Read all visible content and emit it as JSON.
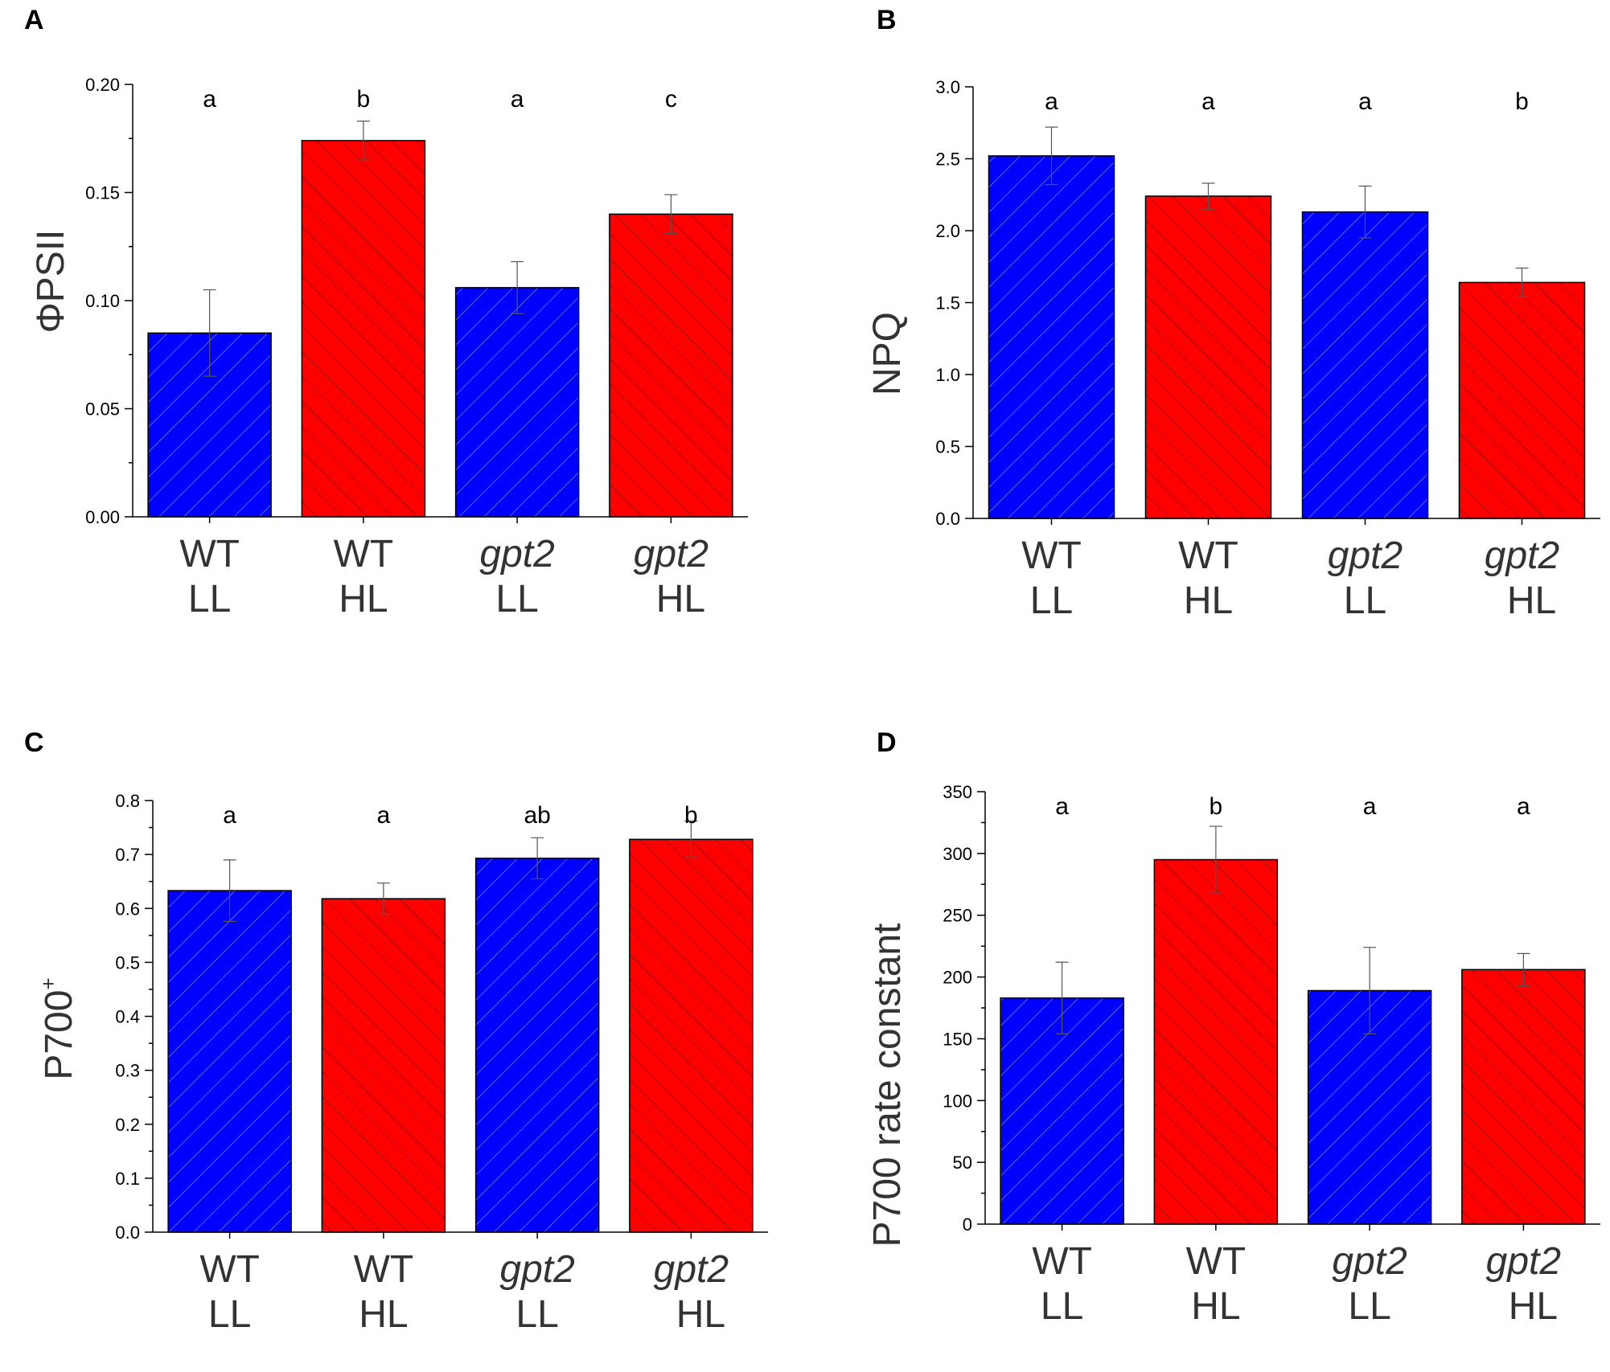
{
  "colors": {
    "LL": "#0000ff",
    "HL": "#ff0000"
  },
  "chart_data": [
    {
      "panel": "A",
      "type": "bar",
      "ylabel": "ΦPSII",
      "ylim": [
        0,
        0.2
      ],
      "yticks": [
        "0.00",
        "0.05",
        "0.10",
        "0.15",
        "0.20"
      ],
      "categories": [
        {
          "line1": "WT",
          "line2": "LL",
          "italic": false,
          "light": "LL"
        },
        {
          "line1": "WT",
          "line2": "HL",
          "italic": false,
          "light": "HL"
        },
        {
          "line1": "gpt2",
          "line2": "LL",
          "italic": true,
          "light": "LL"
        },
        {
          "line1": "gpt2",
          "line2": "HL",
          "italic": true,
          "light": "HL"
        }
      ],
      "values": [
        0.085,
        0.174,
        0.106,
        0.14
      ],
      "errors": [
        0.02,
        0.009,
        0.012,
        0.009
      ],
      "significance": [
        "a",
        "b",
        "a",
        "c"
      ]
    },
    {
      "panel": "B",
      "type": "bar",
      "ylabel": "NPQ",
      "ylim": [
        0,
        3
      ],
      "yticks": [
        "0.0",
        "0.5",
        "1.0",
        "1.5",
        "2.0",
        "2.5",
        "3.0"
      ],
      "categories": [
        {
          "line1": "WT",
          "line2": "LL",
          "italic": false,
          "light": "LL"
        },
        {
          "line1": "WT",
          "line2": "HL",
          "italic": false,
          "light": "HL"
        },
        {
          "line1": "gpt2",
          "line2": "LL",
          "italic": true,
          "light": "LL"
        },
        {
          "line1": "gpt2",
          "line2": "HL",
          "italic": true,
          "light": "HL"
        }
      ],
      "values": [
        2.52,
        2.24,
        2.13,
        1.64
      ],
      "errors": [
        0.2,
        0.09,
        0.18,
        0.1
      ],
      "significance": [
        "a",
        "a",
        "a",
        "b"
      ]
    },
    {
      "panel": "C",
      "type": "bar",
      "ylabel": "P700",
      "ylabel_sup": "+",
      "ylim": [
        0,
        0.8
      ],
      "yticks": [
        "0.0",
        "0.1",
        "0.2",
        "0.3",
        "0.4",
        "0.5",
        "0.6",
        "0.7",
        "0.8"
      ],
      "categories": [
        {
          "line1": "WT",
          "line2": "LL",
          "italic": false,
          "light": "LL"
        },
        {
          "line1": "WT",
          "line2": "HL",
          "italic": false,
          "light": "HL"
        },
        {
          "line1": "gpt2",
          "line2": "LL",
          "italic": true,
          "light": "LL"
        },
        {
          "line1": "gpt2",
          "line2": "HL",
          "italic": true,
          "light": "HL"
        }
      ],
      "values": [
        0.633,
        0.618,
        0.693,
        0.728
      ],
      "errors": [
        0.057,
        0.029,
        0.038,
        0.034
      ],
      "significance": [
        "a",
        "a",
        "ab",
        "b"
      ]
    },
    {
      "panel": "D",
      "type": "bar",
      "ylabel": "P700 rate constant",
      "ylim": [
        0,
        350
      ],
      "yticks": [
        "0",
        "50",
        "100",
        "150",
        "200",
        "250",
        "300",
        "350"
      ],
      "categories": [
        {
          "line1": "WT",
          "line2": "LL",
          "italic": false,
          "light": "LL"
        },
        {
          "line1": "WT",
          "line2": "HL",
          "italic": false,
          "light": "HL"
        },
        {
          "line1": "gpt2",
          "line2": "LL",
          "italic": true,
          "light": "LL"
        },
        {
          "line1": "gpt2",
          "line2": "HL",
          "italic": true,
          "light": "HL"
        }
      ],
      "values": [
        183,
        295,
        189,
        206
      ],
      "errors": [
        29,
        27,
        35,
        13
      ],
      "significance": [
        "a",
        "b",
        "a",
        "a"
      ]
    }
  ]
}
